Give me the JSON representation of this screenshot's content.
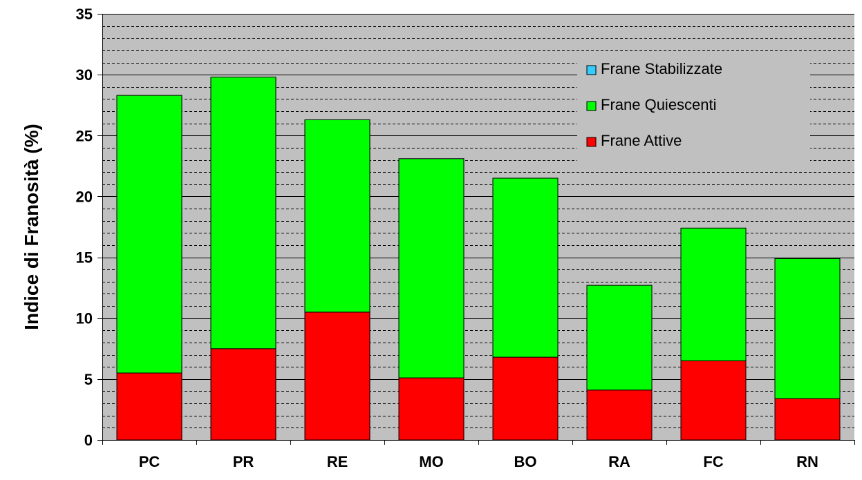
{
  "chart_data": {
    "type": "bar",
    "stacked": true,
    "title": "",
    "xlabel": "",
    "ylabel": "Indice di Franosità (%)",
    "ylim": [
      0,
      35
    ],
    "yticks": [
      "0",
      "5",
      "10",
      "15",
      "20",
      "25",
      "30",
      "35"
    ],
    "ytick_values": [
      0,
      5,
      10,
      15,
      20,
      25,
      30,
      35
    ],
    "minor_grid_step": 1,
    "categories": [
      "PC",
      "PR",
      "RE",
      "MO",
      "BO",
      "RA",
      "FC",
      "RN"
    ],
    "series": [
      {
        "name": "Frane Attive",
        "color": "#ff0000",
        "values": [
          5.5,
          7.5,
          10.5,
          5.1,
          6.8,
          4.1,
          6.5,
          3.4
        ]
      },
      {
        "name": "Frane Quiescenti",
        "color": "#00ff00",
        "values": [
          22.8,
          22.3,
          15.8,
          18.0,
          14.7,
          8.6,
          10.9,
          11.5
        ]
      },
      {
        "name": "Frane Stabilizzate",
        "color": "#33ccff",
        "values": [
          0,
          0,
          0,
          0,
          0,
          0,
          0,
          0
        ]
      }
    ],
    "legend": {
      "placement": "top-right",
      "entries": [
        "Frane Stabilizzate",
        "Frane Quiescenti",
        "Frane Attive"
      ],
      "colors": [
        "#33ccff",
        "#00ff00",
        "#ff0000"
      ]
    },
    "plot_background": "#c0c0c0",
    "grid": true
  }
}
